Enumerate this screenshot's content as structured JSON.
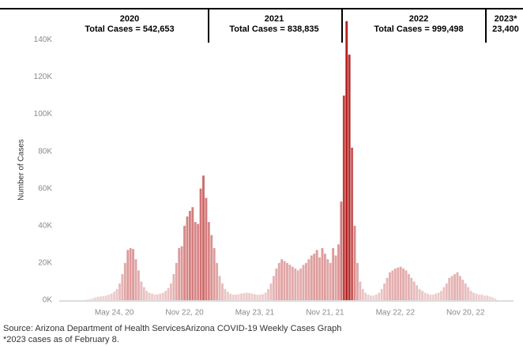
{
  "chart_data": {
    "type": "bar",
    "y_label": "Number of Cases",
    "annotations": [
      {
        "year": "2020",
        "total": "Total Cases = 542,653"
      },
      {
        "year": "2021",
        "total": "Total Cases = 838,835"
      },
      {
        "year": "2022",
        "total": "Total Cases = 999,498"
      },
      {
        "year": "2023*",
        "total": "23,400"
      }
    ],
    "source": "Source: Arizona Department of Health ServicesArizona COVID-19 Weekly Cases Graph",
    "footnote": "*2023 cases as of February 8.",
    "categories": [
      null,
      null,
      null,
      null,
      null,
      null,
      null,
      null,
      null,
      null,
      null,
      "May 24, 20",
      null,
      null,
      null,
      null,
      null,
      null,
      null,
      null,
      null,
      null,
      null,
      null,
      null,
      null,
      null,
      null,
      null,
      null,
      null,
      null,
      null,
      null,
      null,
      null,
      null,
      "Nov 22, 20",
      null,
      null,
      null,
      null,
      null,
      null,
      null,
      null,
      null,
      null,
      null,
      null,
      null,
      null,
      null,
      null,
      null,
      null,
      null,
      null,
      null,
      null,
      null,
      null,
      null,
      "May 23, 21",
      null,
      null,
      null,
      null,
      null,
      null,
      null,
      null,
      null,
      null,
      null,
      null,
      null,
      null,
      null,
      null,
      null,
      null,
      null,
      null,
      null,
      null,
      null,
      null,
      null,
      "Nov 21, 21",
      null,
      null,
      null,
      null,
      null,
      null,
      null,
      null,
      null,
      null,
      null,
      null,
      null,
      null,
      null,
      null,
      null,
      null,
      null,
      null,
      null,
      null,
      null,
      null,
      null,
      "May 22, 22",
      null,
      null,
      null,
      null,
      null,
      null,
      null,
      null,
      null,
      null,
      null,
      null,
      null,
      null,
      null,
      null,
      null,
      null,
      null,
      null,
      null,
      null,
      null,
      null,
      null,
      "Nov 20, 22",
      null,
      null,
      null,
      null,
      null,
      null,
      null,
      null,
      null,
      null,
      null
    ],
    "values": [
      100,
      300,
      600,
      1000,
      1500,
      1800,
      2000,
      2200,
      2500,
      3000,
      3500,
      4500,
      6000,
      9000,
      14000,
      20000,
      27000,
      28000,
      27500,
      22000,
      16000,
      10000,
      7000,
      5000,
      4000,
      3500,
      3000,
      3200,
      3500,
      4000,
      5000,
      6500,
      9000,
      14000,
      20000,
      28000,
      29000,
      40000,
      45000,
      48000,
      50000,
      42000,
      41000,
      60000,
      67000,
      55000,
      42000,
      35000,
      28000,
      20000,
      13000,
      9000,
      6000,
      4500,
      3500,
      3000,
      3000,
      3200,
      3500,
      3800,
      4000,
      3800,
      3500,
      3200,
      3000,
      3000,
      3200,
      4000,
      6000,
      9000,
      13000,
      17000,
      20000,
      22000,
      21000,
      20000,
      19000,
      18000,
      17000,
      16000,
      17000,
      19000,
      20000,
      22000,
      24000,
      25000,
      27000,
      23000,
      28000,
      25000,
      22000,
      20000,
      28000,
      24000,
      30000,
      53000,
      110000,
      150000,
      132000,
      82000,
      40000,
      20000,
      10000,
      6000,
      4000,
      3000,
      2500,
      2500,
      3000,
      4000,
      6000,
      9000,
      12000,
      15000,
      16000,
      17000,
      17500,
      18000,
      17000,
      16000,
      14000,
      12000,
      10000,
      8000,
      6000,
      5000,
      4000,
      3500,
      3000,
      3000,
      3500,
      4000,
      5000,
      7000,
      9000,
      12000,
      13000,
      14000,
      15000,
      13000,
      11000,
      9000,
      7000,
      5000,
      4000,
      3500,
      3000,
      3000,
      2500,
      2500,
      2000,
      1500,
      1000
    ],
    "color_low": "#f4e0e0",
    "color_high": "#b41c1c",
    "ylim": [
      0,
      155000
    ],
    "yticks": [
      {
        "value": 0,
        "label": "0K"
      },
      {
        "value": 20000,
        "label": "20K"
      },
      {
        "value": 40000,
        "label": "40K"
      },
      {
        "value": 60000,
        "label": "60K"
      },
      {
        "value": 80000,
        "label": "80K"
      },
      {
        "value": 100000,
        "label": "100K"
      },
      {
        "value": 120000,
        "label": "120K"
      },
      {
        "value": 140000,
        "label": "140K"
      }
    ],
    "grid": false
  }
}
